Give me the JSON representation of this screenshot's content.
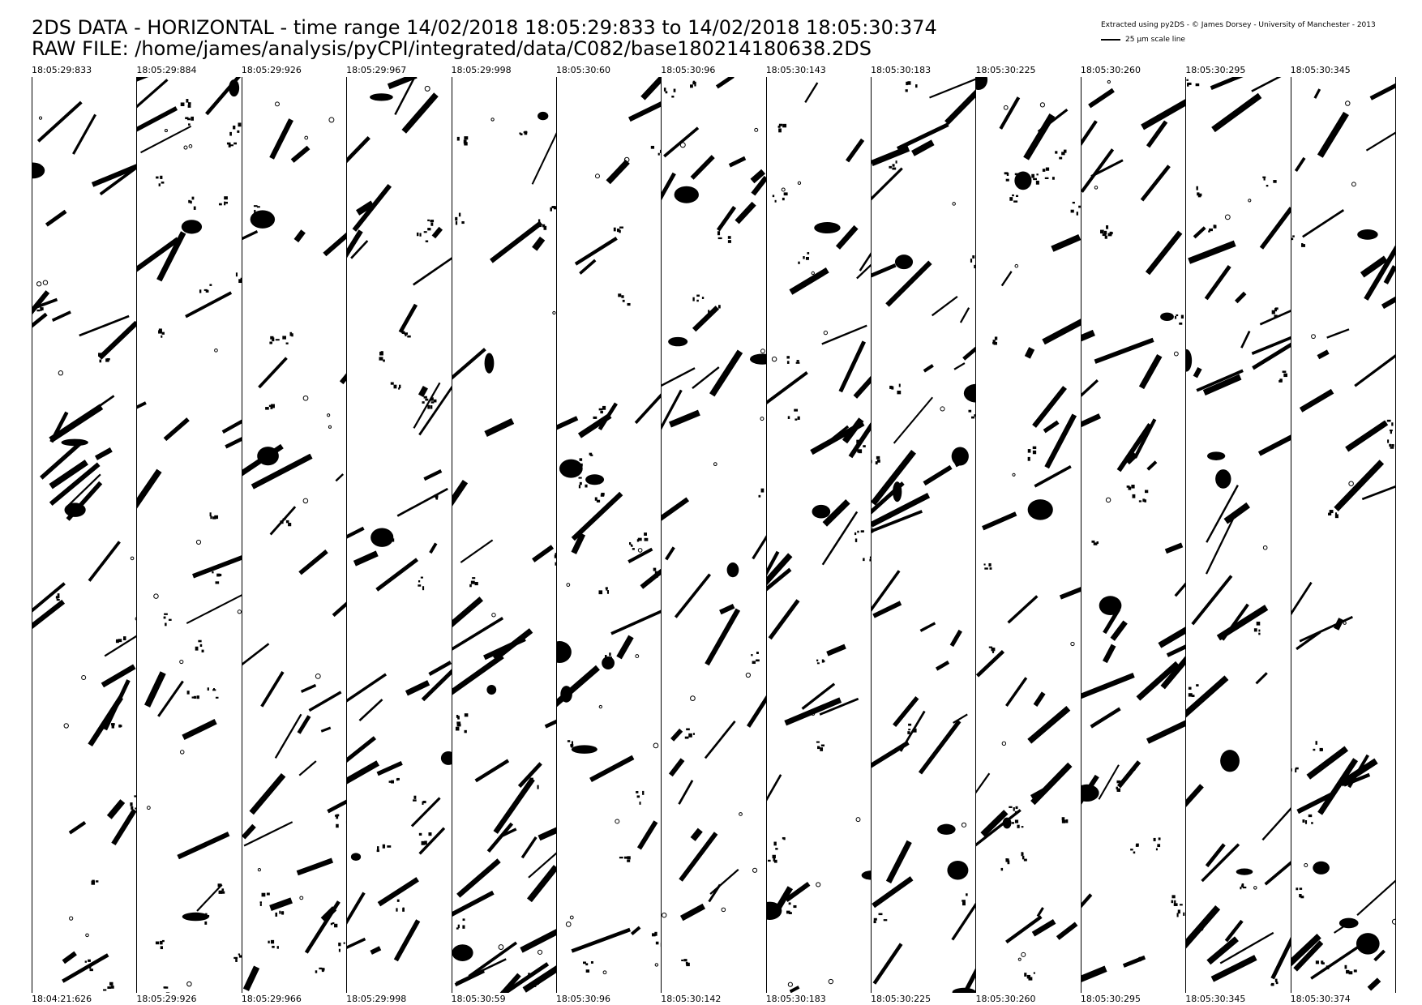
{
  "header": {
    "line1": "2DS DATA - HORIZONTAL - time range 14/02/2018 18:05:29:833 to 14/02/2018 18:05:30:374",
    "line2": "RAW FILE: /home/james/analysis/pyCPI/integrated/data/C082/base180214180638.2DS",
    "credit": "Extracted using py2DS - © James Dorsey - University of Manchester - 2013",
    "scale_label": "25 µm scale line"
  },
  "strips": [
    {
      "top": "18:05:29:833",
      "bottom": "18:04:21:626"
    },
    {
      "top": "18:05:29:884",
      "bottom": "18:05:29:926"
    },
    {
      "top": "18:05:29:926",
      "bottom": "18:05:29:966"
    },
    {
      "top": "18:05:29:967",
      "bottom": "18:05:29:998"
    },
    {
      "top": "18:05:29:998",
      "bottom": "18:05:30:59"
    },
    {
      "top": "18:05:30:60",
      "bottom": "18:05:30:96"
    },
    {
      "top": "18:05:30:96",
      "bottom": "18:05:30:142"
    },
    {
      "top": "18:05:30:143",
      "bottom": "18:05:30:183"
    },
    {
      "top": "18:05:30:183",
      "bottom": "18:05:30:225"
    },
    {
      "top": "18:05:30:225",
      "bottom": "18:05:30:260"
    },
    {
      "top": "18:05:30:260",
      "bottom": "18:05:30:295"
    },
    {
      "top": "18:05:30:295",
      "bottom": "18:05:30:345"
    },
    {
      "top": "18:05:30:345",
      "bottom": "18:05:30:374"
    }
  ]
}
